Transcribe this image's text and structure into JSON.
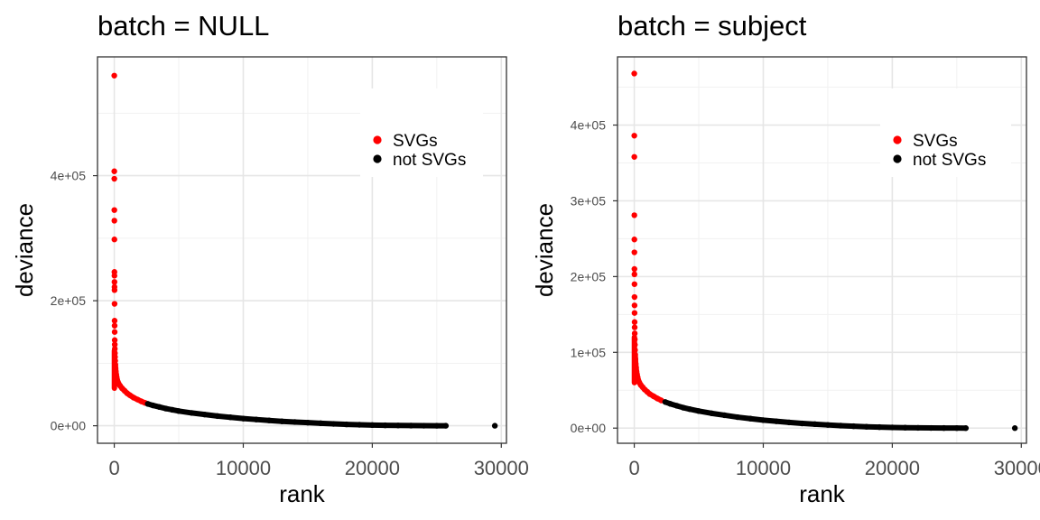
{
  "chart_data": [
    {
      "type": "scatter",
      "title": "batch = NULL",
      "xlabel": "rank",
      "ylabel": "deviance",
      "xlim": [
        -1300,
        30400
      ],
      "ylim": [
        -28000,
        590000
      ],
      "x_ticks": [
        0,
        10000,
        20000,
        30000
      ],
      "x_tick_labels": [
        "0",
        "10000",
        "20000",
        "30000"
      ],
      "y_ticks": [
        0,
        200000,
        400000
      ],
      "y_tick_labels": [
        "0e+00",
        "2e+05",
        "4e+05"
      ],
      "grid": true,
      "legend_position": "top-right",
      "series": [
        {
          "name": "SVGs",
          "color": "#ff0000",
          "points": [
            [
              0,
              560000
            ],
            [
              2,
              407000
            ],
            [
              4,
              395000
            ],
            [
              6,
              345000
            ],
            [
              8,
              328000
            ],
            [
              10,
              298000
            ],
            [
              12,
              246000
            ],
            [
              14,
              240000
            ],
            [
              16,
              230000
            ],
            [
              18,
              222000
            ],
            [
              20,
              217000
            ],
            [
              22,
              195000
            ],
            [
              24,
              168000
            ],
            [
              26,
              160000
            ],
            [
              30,
              150000
            ],
            [
              34,
              137000
            ],
            [
              38,
              130000
            ],
            [
              42,
              123000
            ],
            [
              50,
              116000
            ],
            [
              60,
              110000
            ],
            [
              70,
              104000
            ],
            [
              80,
              98000
            ],
            [
              100,
              92000
            ],
            [
              120,
              87000
            ],
            [
              150,
              82000
            ],
            [
              180,
              78000
            ],
            [
              220,
              74000
            ],
            [
              280,
              70000
            ],
            [
              350,
              67000
            ],
            [
              450,
              64000
            ],
            [
              600,
              60000
            ],
            [
              800,
              56000
            ],
            [
              1000,
              52000
            ],
            [
              1200,
              49000
            ],
            [
              1500,
              45000
            ],
            [
              1800,
              42000
            ],
            [
              2100,
              39000
            ],
            [
              2400,
              36500
            ]
          ]
        },
        {
          "name": "not SVGs",
          "color": "#000000",
          "points": [
            [
              2600,
              35000
            ],
            [
              3000,
              32500
            ],
            [
              3500,
              30000
            ],
            [
              4000,
              27500
            ],
            [
              4500,
              25500
            ],
            [
              5000,
              23500
            ],
            [
              6000,
              20500
            ],
            [
              7000,
              18000
            ],
            [
              8000,
              15500
            ],
            [
              9000,
              13500
            ],
            [
              10000,
              11500
            ],
            [
              11000,
              10000
            ],
            [
              12000,
              8500
            ],
            [
              13000,
              7000
            ],
            [
              14000,
              6000
            ],
            [
              15000,
              5000
            ],
            [
              16000,
              4000
            ],
            [
              17000,
              3000
            ],
            [
              18000,
              2200
            ],
            [
              19000,
              1600
            ],
            [
              20000,
              1100
            ],
            [
              21000,
              700
            ],
            [
              22000,
              450
            ],
            [
              23000,
              250
            ],
            [
              24000,
              120
            ],
            [
              25000,
              50
            ],
            [
              25700,
              20
            ],
            [
              29500,
              0
            ]
          ]
        }
      ]
    },
    {
      "type": "scatter",
      "title": "batch = subject",
      "xlabel": "rank",
      "ylabel": "deviance",
      "xlim": [
        -1300,
        30400
      ],
      "ylim": [
        -20000,
        490000
      ],
      "x_ticks": [
        0,
        10000,
        20000,
        30000
      ],
      "x_tick_labels": [
        "0",
        "10000",
        "20000",
        "30000"
      ],
      "y_ticks": [
        0,
        100000,
        200000,
        300000,
        400000
      ],
      "y_tick_labels": [
        "0e+00",
        "1e+05",
        "2e+05",
        "3e+05",
        "4e+05"
      ],
      "grid": true,
      "legend_position": "top-right",
      "series": [
        {
          "name": "SVGs",
          "color": "#ff0000",
          "points": [
            [
              0,
              468000
            ],
            [
              2,
              386000
            ],
            [
              4,
              358000
            ],
            [
              6,
              281000
            ],
            [
              8,
              249000
            ],
            [
              10,
              232000
            ],
            [
              12,
              210000
            ],
            [
              14,
              203000
            ],
            [
              16,
              190000
            ],
            [
              18,
              173000
            ],
            [
              20,
              162000
            ],
            [
              22,
              152000
            ],
            [
              26,
              140000
            ],
            [
              30,
              133000
            ],
            [
              34,
              125000
            ],
            [
              40,
              117000
            ],
            [
              50,
              110000
            ],
            [
              60,
              103000
            ],
            [
              70,
              97000
            ],
            [
              90,
              91000
            ],
            [
              110,
              85000
            ],
            [
              140,
              80000
            ],
            [
              170,
              75000
            ],
            [
              210,
              71000
            ],
            [
              260,
              67000
            ],
            [
              320,
              63000
            ],
            [
              400,
              60000
            ],
            [
              500,
              57000
            ],
            [
              650,
              54000
            ],
            [
              800,
              51000
            ],
            [
              1000,
              48000
            ],
            [
              1200,
              45000
            ],
            [
              1500,
              42000
            ],
            [
              1800,
              39000
            ],
            [
              2100,
              36500
            ]
          ]
        },
        {
          "name": "not SVGs",
          "color": "#000000",
          "points": [
            [
              2400,
              34500
            ],
            [
              2800,
              32000
            ],
            [
              3300,
              29500
            ],
            [
              3800,
              27000
            ],
            [
              4300,
              25000
            ],
            [
              5000,
              22500
            ],
            [
              6000,
              19500
            ],
            [
              7000,
              17000
            ],
            [
              8000,
              14500
            ],
            [
              9000,
              12500
            ],
            [
              10000,
              10500
            ],
            [
              11000,
              9000
            ],
            [
              12000,
              7500
            ],
            [
              13000,
              6200
            ],
            [
              14000,
              5200
            ],
            [
              15000,
              4200
            ],
            [
              16000,
              3300
            ],
            [
              17000,
              2500
            ],
            [
              18000,
              1800
            ],
            [
              19000,
              1300
            ],
            [
              20000,
              900
            ],
            [
              21000,
              600
            ],
            [
              22000,
              350
            ],
            [
              23000,
              200
            ],
            [
              24000,
              100
            ],
            [
              25000,
              40
            ],
            [
              25700,
              15
            ],
            [
              29500,
              0
            ]
          ]
        }
      ]
    }
  ]
}
